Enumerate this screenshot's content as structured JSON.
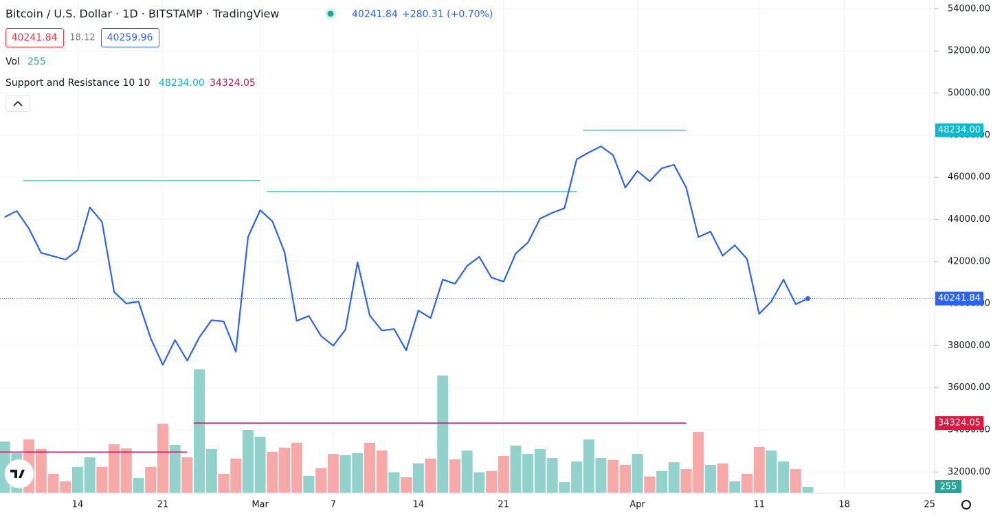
{
  "chart_data": {
    "type": "line",
    "title": "Bitcoin / U.S. Dollar · 1D · BITSTAMP · TradingView",
    "quote": {
      "change": "+280.31 (+0.70%)",
      "spread": 18.12,
      "ask": 40259.96
    },
    "color": "#2962ff",
    "categories": [
      null,
      null,
      null,
      null,
      null,
      null,
      "14",
      null,
      null,
      null,
      null,
      null,
      null,
      "21",
      null,
      null,
      null,
      null,
      null,
      null,
      null,
      "Mar",
      null,
      null,
      null,
      null,
      null,
      "7",
      null,
      null,
      null,
      null,
      null,
      null,
      "14",
      null,
      null,
      null,
      null,
      null,
      null,
      "21",
      null,
      null,
      null,
      null,
      null,
      null,
      null,
      null,
      null,
      null,
      "Apr",
      null,
      null,
      null,
      null,
      null,
      null,
      null,
      null,
      null,
      "11",
      null,
      null,
      null,
      null,
      null,
      null,
      "18",
      null,
      null,
      null,
      null,
      null,
      null,
      "25"
    ],
    "values": [
      44110,
      44400,
      43560,
      42410,
      42250,
      42090,
      42540,
      44570,
      43880,
      40550,
      40000,
      40100,
      38360,
      37090,
      38270,
      37290,
      38400,
      39210,
      39150,
      37710,
      43160,
      44440,
      43910,
      42450,
      39180,
      39410,
      38460,
      38000,
      38760,
      41960,
      39440,
      38720,
      38790,
      37780,
      39670,
      39310,
      41140,
      40940,
      41790,
      42220,
      41240,
      41040,
      42380,
      42900,
      44040,
      44310,
      44530,
      46850,
      47180,
      47470,
      47050,
      45510,
      46300,
      45810,
      46430,
      46590,
      45510,
      43160,
      43420,
      42280,
      42770,
      42120,
      39510,
      40100,
      41140,
      39970,
      40241.84,
      null,
      null,
      null,
      null,
      null,
      null,
      null,
      null,
      null,
      null
    ],
    "ylim": [
      31000,
      54420
    ],
    "yticks": [
      {
        "value": 32000,
        "label": "32000.00"
      },
      {
        "value": 34000,
        "label": "34000.00"
      },
      {
        "value": 36000,
        "label": "36000.00"
      },
      {
        "value": 38000,
        "label": "38000.00"
      },
      {
        "value": 40000,
        "label": "40000.00"
      },
      {
        "value": 42000,
        "label": "42000.00"
      },
      {
        "value": 44000,
        "label": "44000.00"
      },
      {
        "value": 46000,
        "label": "46000.00"
      },
      {
        "value": 48000,
        "label": "48000.00"
      },
      {
        "value": 50000,
        "label": "50000.00"
      },
      {
        "value": 52000,
        "label": "52000.00"
      },
      {
        "value": 54000,
        "label": "54000.00"
      }
    ],
    "volume": {
      "label": "Vol",
      "up_color": "#92d2cc",
      "down_color": "#f7a9a7",
      "y2lim": [
        0,
        20300
      ],
      "values": [
        2120,
        1640,
        2210,
        1810,
        790,
        480,
        1080,
        1470,
        1080,
        2010,
        1840,
        620,
        1080,
        2860,
        1980,
        1470,
        5090,
        1810,
        790,
        1420,
        2600,
        2320,
        1700,
        1870,
        2070,
        710,
        1020,
        1610,
        1560,
        1640,
        2070,
        1750,
        850,
        650,
        1220,
        1420,
        4840,
        1390,
        1750,
        850,
        910,
        1530,
        1950,
        1610,
        1810,
        1440,
        450,
        1300,
        2210,
        1440,
        1360,
        1160,
        1610,
        680,
        910,
        1270,
        990,
        2520,
        1160,
        1220,
        480,
        790,
        1900,
        1750,
        1300,
        990,
        255,
        null,
        null,
        null,
        null,
        null,
        null,
        null,
        null,
        null,
        null
      ]
    },
    "indicator": {
      "name": "Support and Resistance 10 10",
      "resistance_color": "#26c6da",
      "support_color": "#c2185b",
      "resistance": [
        {
          "value": 45840,
          "x": [
            2,
            21
          ]
        },
        {
          "value": 45320,
          "x": [
            22,
            47
          ]
        },
        {
          "value": 48234,
          "label": "48234.00",
          "x": [
            48,
            56
          ]
        }
      ],
      "support": [
        {
          "value": 32950,
          "x": [
            0,
            15
          ]
        },
        {
          "value": 34324.05,
          "x": [
            16,
            56
          ]
        }
      ]
    }
  }
}
